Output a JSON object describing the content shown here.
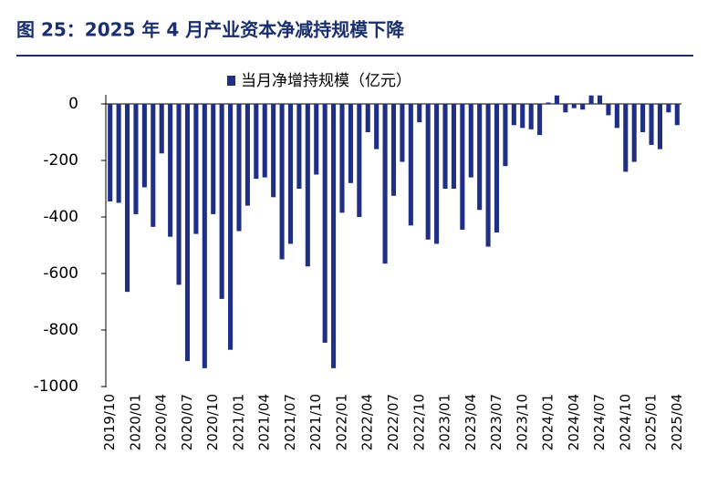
{
  "chart_data": {
    "type": "bar",
    "title": "图 25：2025 年 4 月产业资本净减持规模下降",
    "categories": [
      "2019/10",
      null,
      null,
      "2020/01",
      null,
      null,
      "2020/04",
      null,
      null,
      "2020/07",
      null,
      null,
      "2020/10",
      null,
      null,
      "2021/01",
      null,
      null,
      "2021/04",
      null,
      null,
      "2021/07",
      null,
      null,
      "2021/10",
      null,
      null,
      "2022/01",
      null,
      null,
      "2022/04",
      null,
      null,
      "2022/07",
      null,
      null,
      "2022/10",
      null,
      null,
      "2023/01",
      null,
      null,
      "2023/04",
      null,
      null,
      "2023/07",
      null,
      null,
      "2023/10",
      null,
      null,
      "2024/01",
      null,
      null,
      "2024/04",
      null,
      null,
      "2024/07",
      null,
      null,
      "2024/10",
      null,
      null,
      "2025/01",
      null,
      null,
      "2025/04"
    ],
    "series": [
      {
        "name": "当月净增持规模（亿元）",
        "color": "#1f2f86",
        "values": [
          -345,
          -350,
          -665,
          -390,
          -295,
          -435,
          -175,
          -470,
          -640,
          -910,
          -460,
          -935,
          -390,
          -690,
          -870,
          -450,
          -360,
          -265,
          -260,
          -330,
          -550,
          -495,
          -300,
          -575,
          -250,
          -845,
          -935,
          -385,
          -280,
          -400,
          -100,
          -160,
          -565,
          -325,
          -205,
          -430,
          -65,
          -480,
          -495,
          -300,
          -300,
          -445,
          -260,
          -375,
          -505,
          -455,
          -220,
          -75,
          -85,
          -90,
          -110,
          5,
          30,
          -30,
          -15,
          -20,
          30,
          30,
          -40,
          -85,
          -240,
          -205,
          -100,
          -145,
          -160,
          -30,
          -75
        ]
      }
    ],
    "ylim": [
      -1000,
      0
    ],
    "yticks": [
      0,
      -200,
      -400,
      -600,
      -800,
      -1000
    ],
    "legend": "top"
  }
}
